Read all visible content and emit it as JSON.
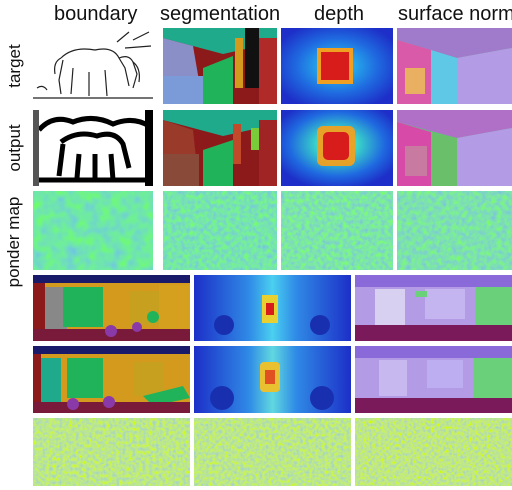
{
  "figure": {
    "column_headers": [
      "boundary",
      "segmentation",
      "depth",
      "surface normal"
    ],
    "row_labels": [
      "target",
      "output",
      "ponder map"
    ]
  },
  "colors": {
    "seg_red": "#8c1a1a",
    "seg_green": "#21b35a",
    "seg_teal": "#1faa8c",
    "seg_orange": "#d49a1e",
    "seg_purple": "#8a3aa8",
    "depth_blue": "#1f4fe0",
    "depth_red": "#d81c1c",
    "normal_pink": "#d95aa8",
    "normal_lilac": "#b39be6",
    "ponder_teal": "#2aa79b",
    "ponder_yellow": "#e6d23a"
  }
}
